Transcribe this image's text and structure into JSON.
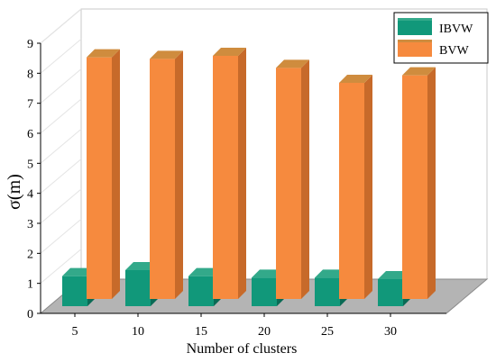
{
  "chart_data": {
    "type": "bar",
    "categories": [
      "5",
      "10",
      "15",
      "20",
      "25",
      "30"
    ],
    "series": [
      {
        "name": "IBVW",
        "values": [
          1.0,
          1.2,
          1.0,
          0.95,
          0.95,
          0.9
        ]
      },
      {
        "name": "BVW",
        "values": [
          8.05,
          8.0,
          8.1,
          7.7,
          7.2,
          7.45
        ]
      }
    ],
    "xlabel": "Number of clusters",
    "ylabel": "σ(m)",
    "ylim": [
      0,
      9
    ],
    "yticks": [
      "0",
      "1",
      "2",
      "3",
      "4",
      "5",
      "6",
      "7",
      "8",
      "9"
    ],
    "grid": false,
    "legend_position": "top-right",
    "colors": {
      "IBVW": {
        "front": "#11987a",
        "top": "#33a98a",
        "side": "#0a6a55"
      },
      "BVW": {
        "front": "#f68a3e",
        "top": "#cf8c3e",
        "side": "#c76a2a"
      },
      "floor": "#b4b4b4",
      "wall_line": "#c8c8c8"
    }
  }
}
